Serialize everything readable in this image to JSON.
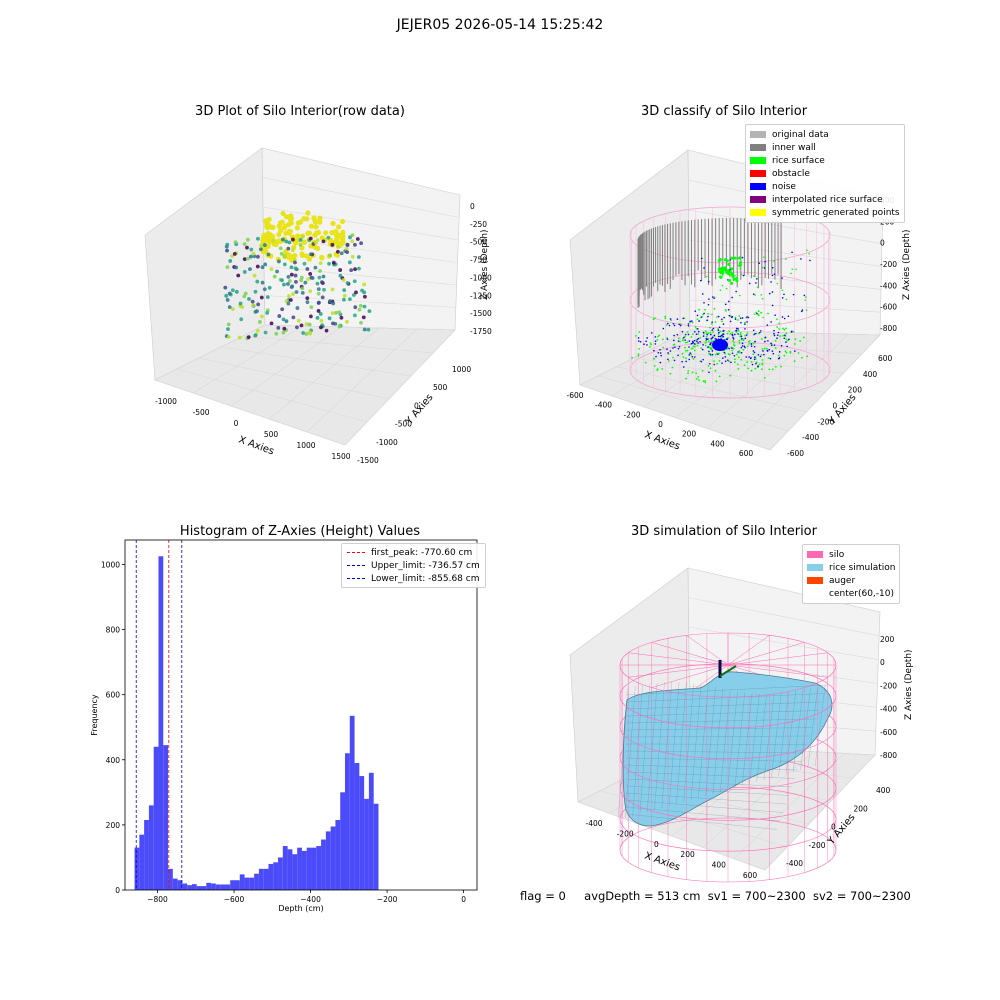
{
  "figure": {
    "suptitle": "JEJER05 2026-05-14 15:25:42",
    "footer": {
      "flag": "flag = 0",
      "avg_depth": "avgDepth = 513 cm",
      "sv1": "sv1 = 700~2300",
      "sv2": "sv2 = 700~2300"
    }
  },
  "colors": {
    "histogram": "#4b4bfa",
    "first_peak": "#ff0000",
    "limits": "#0000cc",
    "original": "#b3b3b3",
    "inner_wall": "#808080",
    "rice_surface": "#00ff00",
    "obstacle": "#ff0000",
    "noise": "#0000ff",
    "interpolated": "#800080",
    "symmetric": "#ffff00",
    "silo": "#ff69b4",
    "rice_simulation": "#87ceeb",
    "auger": "#ff4500"
  },
  "chart_data": [
    {
      "type": "scatter",
      "title": "3D Plot of Silo Interior(row data)",
      "xlabel": "X Axies",
      "ylabel": "Y Axies",
      "zlabel": "Z Axies (Depth)",
      "x_ticks": [
        "-1000",
        "-500",
        "0",
        "500",
        "1000",
        "1500"
      ],
      "y_ticks": [
        "1000",
        "500",
        "0",
        "-500",
        "-1000",
        "-1500"
      ],
      "z_ticks": [
        "0",
        "-250",
        "-500",
        "-750",
        "-1000",
        "-1250",
        "-1500",
        "-1750"
      ],
      "xlim": [
        -1250,
        1500
      ],
      "ylim": [
        -1500,
        1250
      ],
      "zlim": [
        -1900,
        100
      ],
      "colormap": "viridis"
    },
    {
      "type": "scatter",
      "title": "3D classify of Silo Interior",
      "xlabel": "X Axies",
      "ylabel": "Y Axies",
      "zlabel": "Z Axies (Depth)",
      "x_ticks": [
        "-600",
        "-400",
        "-200",
        "0",
        "200",
        "400",
        "600"
      ],
      "y_ticks": [
        "600",
        "400",
        "200",
        "0",
        "-200",
        "-400",
        "-600"
      ],
      "z_ticks": [
        "400",
        "200",
        "0",
        "-200",
        "-400",
        "-600",
        "-800"
      ],
      "xlim": [
        -650,
        650
      ],
      "ylim": [
        -650,
        650
      ],
      "zlim": [
        -900,
        450
      ],
      "legend": [
        "original data",
        "inner wall",
        "rice surface",
        "obstacle",
        "noise",
        "interpolated rice surface",
        "symmetric generated points"
      ],
      "legend_position": "top-right"
    },
    {
      "type": "bar",
      "title": "Histogram of Z-Axies (Height) Values",
      "xlabel": "Depth (cm)",
      "ylabel": "Frequency",
      "bin_start": -860,
      "bin_width": 12.5,
      "values": [
        130,
        170,
        215,
        260,
        440,
        1025,
        445,
        65,
        35,
        30,
        20,
        15,
        18,
        12,
        12,
        22,
        20,
        17,
        17,
        17,
        30,
        30,
        48,
        38,
        38,
        50,
        65,
        65,
        80,
        85,
        100,
        135,
        125,
        110,
        130,
        120,
        130,
        130,
        135,
        155,
        180,
        195,
        215,
        300,
        420,
        535,
        390,
        350,
        280,
        360,
        265
      ],
      "xlim": [
        -885,
        35
      ],
      "ylim": [
        0,
        1075
      ],
      "x_ticks": [
        -800,
        -600,
        -400,
        -200,
        0
      ],
      "x_tick_labels": [
        "−800",
        "−600",
        "−400",
        "−200",
        "0"
      ],
      "y_ticks": [
        0,
        200,
        400,
        600,
        800,
        1000
      ],
      "y_tick_labels": [
        "0",
        "200",
        "400",
        "600",
        "800",
        "1000"
      ],
      "vlines": [
        {
          "name": "first_peak: -770.60 cm",
          "value": -770.6,
          "color_key": "first_peak"
        },
        {
          "name": "Upper_limit: -736.57 cm",
          "value": -736.57,
          "color_key": "limits"
        },
        {
          "name": "Lower_limit: -855.68 cm",
          "value": -855.68,
          "color_key": "limits"
        }
      ],
      "legend_position": "top-right"
    },
    {
      "type": "surface",
      "title": "3D simulation of Silo Interior",
      "xlabel": "X Axies",
      "ylabel": "Y Axies",
      "zlabel": "Z Axies (Depth)",
      "x_ticks": [
        "-400",
        "-200",
        "0",
        "200",
        "400",
        "600"
      ],
      "y_ticks": [
        "400",
        "200",
        "0",
        "-200",
        "-400"
      ],
      "z_ticks": [
        "200",
        "0",
        "-200",
        "-400",
        "-600",
        "-800"
      ],
      "xlim": [
        -550,
        650
      ],
      "ylim": [
        -550,
        550
      ],
      "zlim": [
        -850,
        300
      ],
      "legend": [
        "silo",
        "rice simulation",
        "auger",
        "center(60,-10)"
      ],
      "legend_position": "top-right"
    }
  ]
}
